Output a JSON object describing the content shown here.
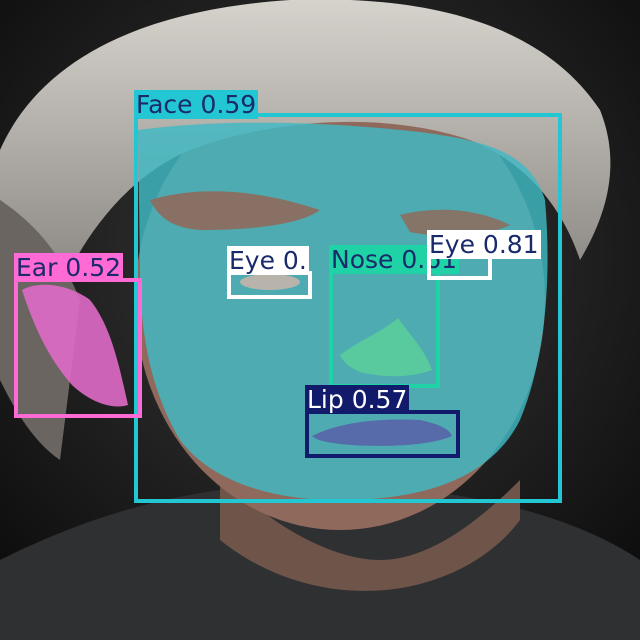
{
  "detections": [
    {
      "name": "face-detection",
      "label": "Face 0.59",
      "color": "#23c6d3",
      "text_color": "#1a2a6b"
    },
    {
      "name": "ear-detection",
      "label": "Ear 0.52",
      "color": "#ff6ad5",
      "text_color": "#1a2a6b"
    },
    {
      "name": "eye-left-detection",
      "label": "Eye 0.",
      "color": "#ffffff",
      "text_color": "#1a2a6b"
    },
    {
      "name": "nose-detection",
      "label": "Nose 0.61",
      "color": "#1fd3a7",
      "text_color": "#1a2a6b"
    },
    {
      "name": "eye-right-detection",
      "label": "Eye 0.81",
      "color": "#ffffff",
      "text_color": "#1a2a6b"
    },
    {
      "name": "lip-detection",
      "label": "Lip 0.57",
      "color": "#121a6b",
      "text_color": "#ffffff"
    }
  ]
}
